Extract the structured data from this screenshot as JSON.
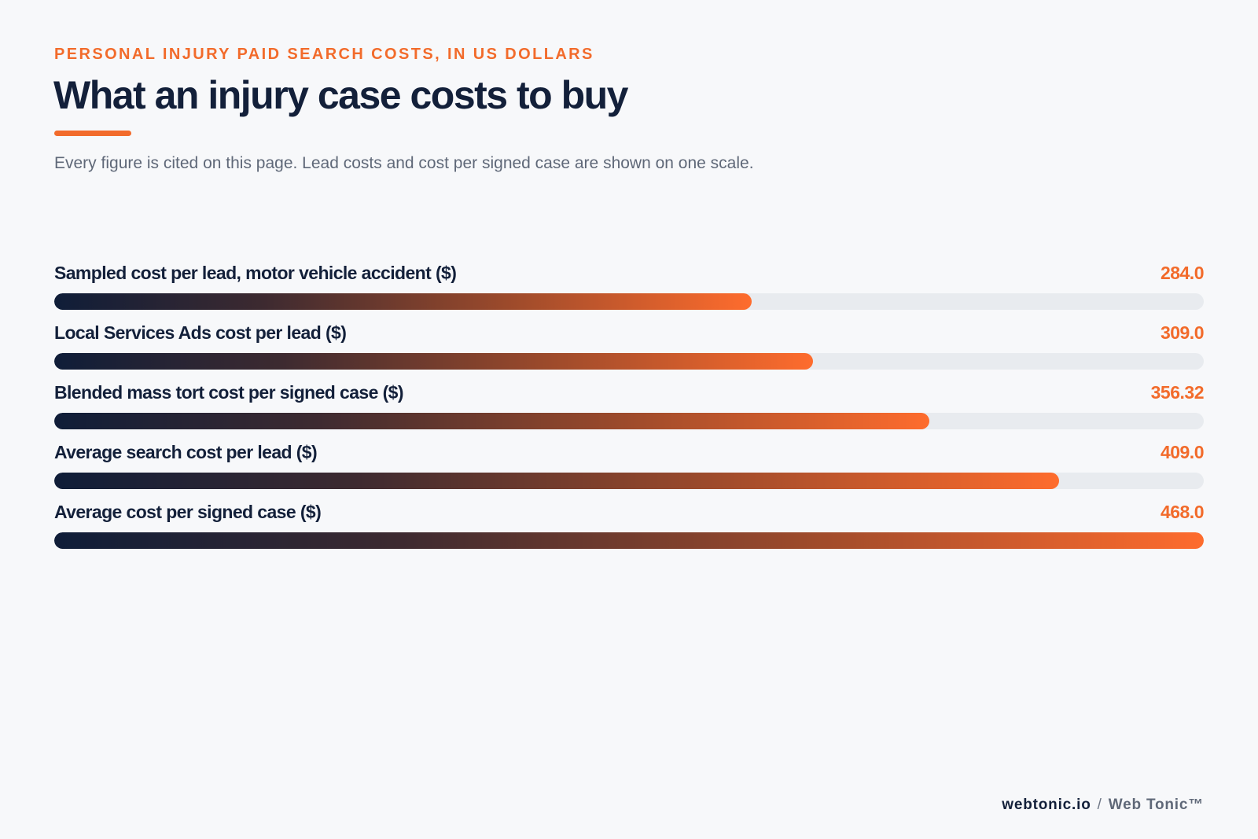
{
  "header": {
    "eyebrow": "PERSONAL INJURY PAID SEARCH COSTS, IN US DOLLARS",
    "title": "What an injury case costs to buy",
    "subtitle": "Every figure is cited on this page. Lead costs and cost per signed case are shown on one scale."
  },
  "footer": {
    "domain": "webtonic.io",
    "separator": "/",
    "brand": "Web Tonic™"
  },
  "colors": {
    "accent": "#f26b2b",
    "navy": "#13203a",
    "track": "#e8ebef",
    "background": "#f7f8fa"
  },
  "chart_data": {
    "type": "bar",
    "orientation": "horizontal",
    "title": "What an injury case costs to buy",
    "xlim": [
      0,
      468
    ],
    "grid": false,
    "categories": [
      "Sampled cost per lead, motor vehicle accident ($)",
      "Local Services Ads cost per lead ($)",
      "Blended mass tort cost per signed case ($)",
      "Average search cost per lead ($)",
      "Average cost per signed case ($)"
    ],
    "values": [
      284.0,
      309.0,
      356.32,
      409.0,
      468.0
    ],
    "value_labels": [
      "284.0",
      "309.0",
      "356.32",
      "409.0",
      "468.0"
    ]
  }
}
